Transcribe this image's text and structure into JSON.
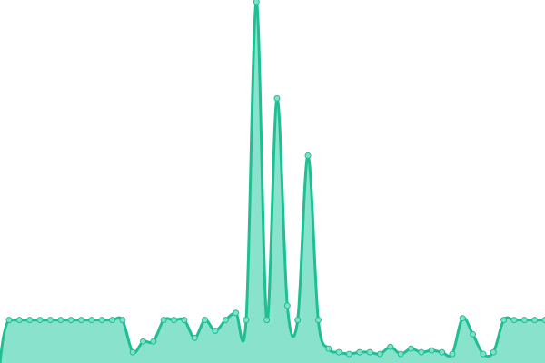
{
  "chart_data": {
    "type": "area",
    "title": "",
    "xlabel": "",
    "ylabel": "",
    "grid": false,
    "legend": "none",
    "line_color": "#1fbf94",
    "fill_color": "#88e2cc",
    "point_fill": "#7fe1c8",
    "ylim": [
      0,
      100
    ],
    "x": [
      0,
      1,
      2,
      3,
      4,
      5,
      6,
      7,
      8,
      9,
      10,
      11,
      12,
      13,
      14,
      15,
      16,
      17,
      18,
      19,
      20,
      21,
      22,
      23,
      24,
      25,
      26,
      27,
      28,
      29,
      30,
      31,
      32,
      33,
      34,
      35,
      36,
      37,
      38,
      39,
      40,
      41,
      42,
      43,
      44,
      45,
      46,
      47,
      48,
      49,
      50,
      51,
      52
    ],
    "values": [
      11,
      11,
      11,
      11,
      11,
      11,
      11,
      11,
      11,
      11,
      11,
      11,
      2,
      5,
      5,
      11,
      11,
      11,
      6,
      11,
      8,
      11,
      13,
      11,
      100,
      11,
      73,
      15,
      11,
      57,
      11,
      3,
      2,
      1.5,
      2,
      2,
      1.5,
      3.5,
      1.5,
      3,
      2,
      2.5,
      2,
      1.5,
      11.5,
      7,
      1.5,
      2,
      11,
      11,
      11,
      11,
      11
    ]
  }
}
